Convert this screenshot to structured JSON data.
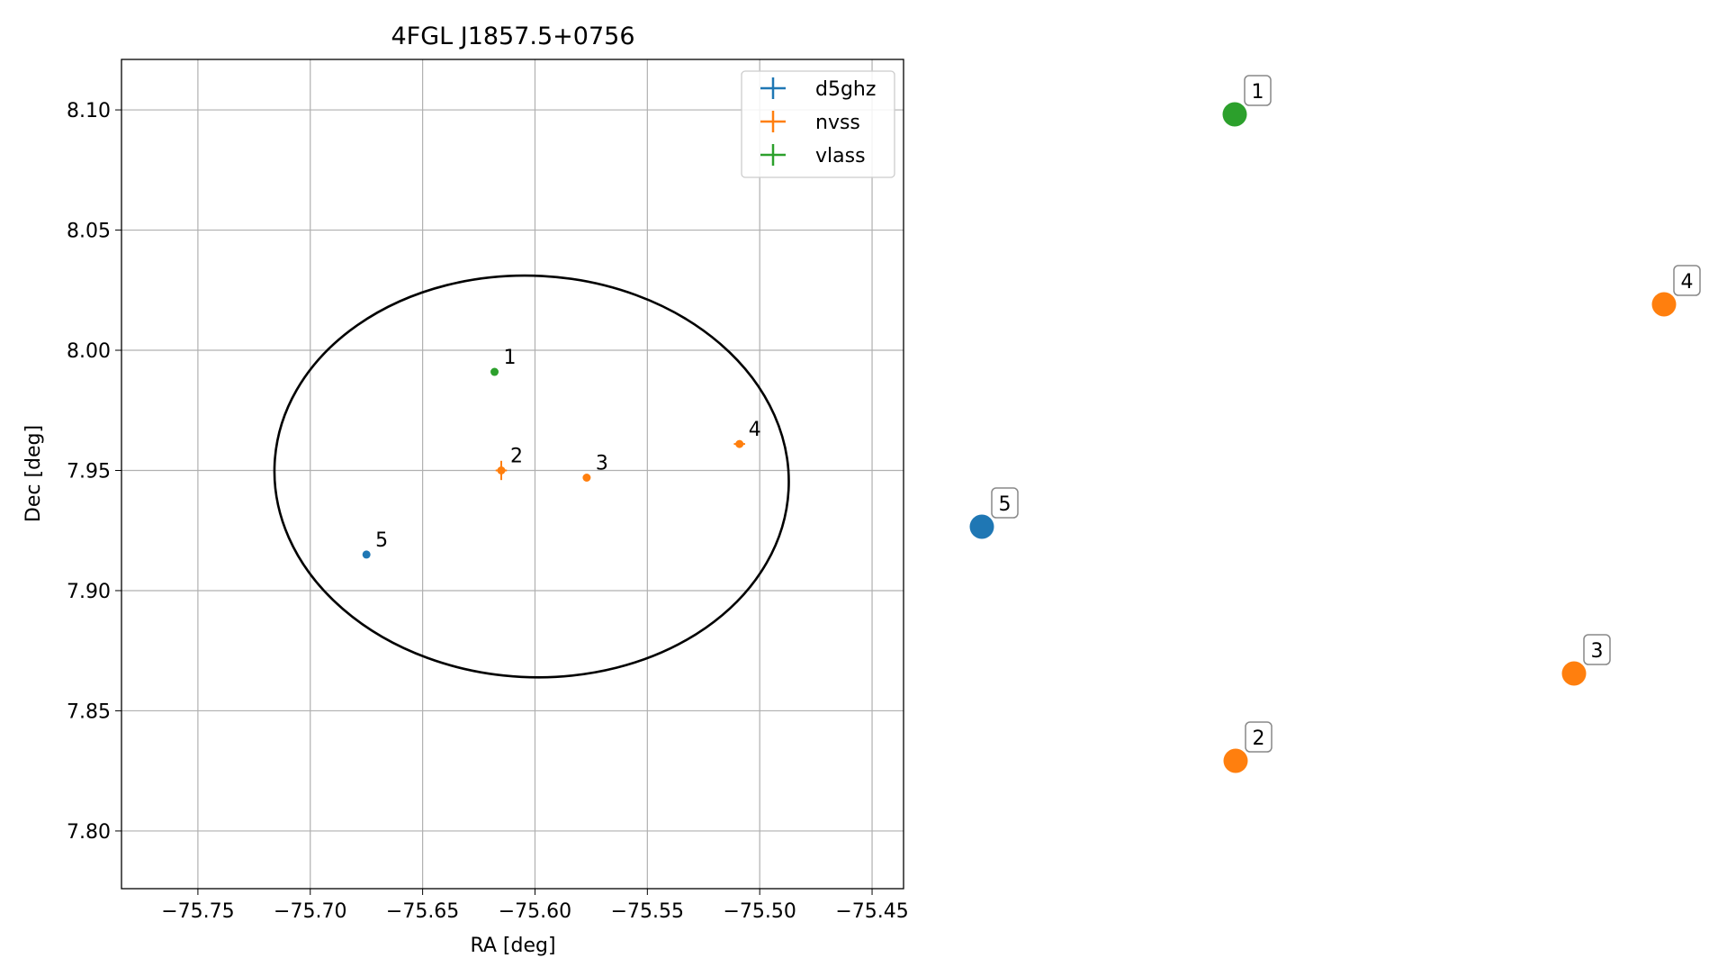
{
  "chart_data": {
    "type": "scatter",
    "title": "4FGL J1857.5+0756",
    "xlabel": "RA [deg]",
    "ylabel": "Dec [deg]",
    "xlim": [
      -75.784,
      -75.436
    ],
    "ylim": [
      7.776,
      8.121
    ],
    "xticks": [
      -75.75,
      -75.7,
      -75.65,
      -75.6,
      -75.55,
      -75.5,
      -75.45
    ],
    "xtick_labels": [
      "−75.75",
      "−75.70",
      "−75.65",
      "−75.60",
      "−75.55",
      "−75.50",
      "−75.45"
    ],
    "yticks": [
      7.8,
      7.85,
      7.9,
      7.95,
      8.0,
      8.05,
      8.1
    ],
    "ytick_labels": [
      "7.80",
      "7.85",
      "7.90",
      "7.95",
      "8.00",
      "8.05",
      "8.10"
    ],
    "grid": true,
    "legend_position": "top-right",
    "ellipse": {
      "center": [
        -75.6015,
        7.9475
      ],
      "semi_axis_ra": 0.1145,
      "semi_axis_dec": 0.0835,
      "angle_deg": 3,
      "color": "#000000"
    },
    "series": [
      {
        "name": "d5ghz",
        "color": "#1f77b4",
        "points": [
          {
            "label": "5",
            "x": -75.675,
            "y": 7.915,
            "xerr": 0.0006,
            "yerr": 0.0006
          }
        ]
      },
      {
        "name": "nvss",
        "color": "#ff7f0e",
        "points": [
          {
            "label": "2",
            "x": -75.615,
            "y": 7.95,
            "xerr": 0.0025,
            "yerr": 0.004
          },
          {
            "label": "3",
            "x": -75.577,
            "y": 7.947,
            "xerr": 0.0008,
            "yerr": 0.0008
          },
          {
            "label": "4",
            "x": -75.509,
            "y": 7.961,
            "xerr": 0.0025,
            "yerr": 0.0015
          }
        ]
      },
      {
        "name": "vlass",
        "color": "#2ca02c",
        "points": [
          {
            "label": "1",
            "x": -75.618,
            "y": 7.991,
            "xerr": 0.0004,
            "yerr": 0.0004
          }
        ]
      }
    ]
  },
  "side_panel": {
    "markers": [
      {
        "label": "1",
        "color": "#2ca02c"
      },
      {
        "label": "2",
        "color": "#ff7f0e"
      },
      {
        "label": "3",
        "color": "#ff7f0e"
      },
      {
        "label": "4",
        "color": "#ff7f0e"
      },
      {
        "label": "5",
        "color": "#1f77b4"
      }
    ]
  }
}
